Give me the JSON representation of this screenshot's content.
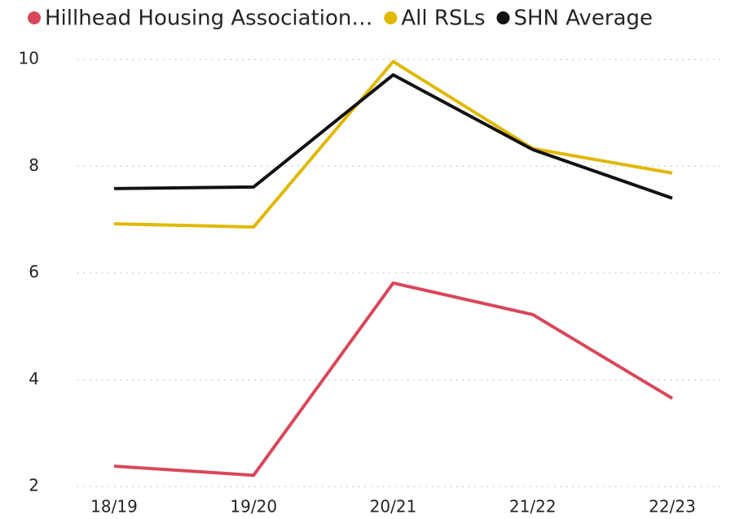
{
  "chart_data": {
    "type": "line",
    "categories": [
      "18/19",
      "19/20",
      "20/21",
      "21/22",
      "22/23"
    ],
    "series": [
      {
        "name": "Hillhead Housing Association…",
        "color": "#d9475a",
        "values": [
          2.38,
          2.21,
          5.81,
          5.22,
          3.65
        ]
      },
      {
        "name": "All RSLs",
        "color": "#e0b800",
        "values": [
          6.92,
          6.86,
          9.96,
          8.33,
          7.87
        ]
      },
      {
        "name": "SHN Average",
        "color": "#111111",
        "values": [
          7.58,
          7.61,
          9.71,
          8.31,
          7.4
        ]
      }
    ],
    "ylim": [
      2,
      10
    ],
    "yticks": [
      2,
      4,
      6,
      8,
      10
    ],
    "grid": true,
    "legend": "top"
  }
}
